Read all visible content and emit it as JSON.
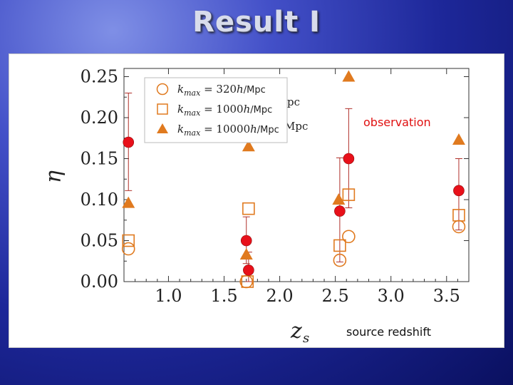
{
  "slide": {
    "title": "Result I"
  },
  "chart_data": {
    "type": "scatter",
    "xlabel": "z_s",
    "ylabel": "η",
    "xlim": [
      0.6,
      3.7
    ],
    "ylim": [
      0,
      0.26
    ],
    "x_ticks": [
      "1.0",
      "1.5",
      "2.0",
      "2.5",
      "3.0",
      "3.5"
    ],
    "y_ticks": [
      "0.00",
      "0.05",
      "0.10",
      "0.15",
      "0.20",
      "0.25"
    ],
    "legend_placement": "top-left",
    "annotations": {
      "observation": "observation",
      "source_redshift": "source redshift",
      "legend_clip_1": "pc",
      "legend_clip_2": "Mpc"
    },
    "colors": {
      "model": "#e07a1f",
      "observation": "#e8101a",
      "errorbar": "#b0302a",
      "annotation": "#e01010"
    },
    "series": [
      {
        "name": "kmax = 320h/Mpc",
        "legend": {
          "var": "k",
          "sub": "max",
          "eq": " = 320",
          "h": "h",
          "unit": "/Mpc"
        },
        "marker": "circle-open",
        "points": [
          {
            "x": 0.64,
            "y": 0.04
          },
          {
            "x": 1.7,
            "y": 0.0
          },
          {
            "x": 2.54,
            "y": 0.026
          },
          {
            "x": 2.62,
            "y": 0.055
          },
          {
            "x": 3.61,
            "y": 0.067
          }
        ]
      },
      {
        "name": "kmax = 1000h/Mpc",
        "legend": {
          "var": "k",
          "sub": "max",
          "eq": " = 1000",
          "h": "h",
          "unit": "/Mpc"
        },
        "marker": "square-open",
        "points": [
          {
            "x": 0.64,
            "y": 0.05
          },
          {
            "x": 1.71,
            "y": 0.0
          },
          {
            "x": 1.72,
            "y": 0.089
          },
          {
            "x": 2.54,
            "y": 0.044
          },
          {
            "x": 2.62,
            "y": 0.106
          },
          {
            "x": 3.61,
            "y": 0.081
          }
        ]
      },
      {
        "name": "kmax = 10000h/Mpc",
        "legend": {
          "var": "k",
          "sub": "max",
          "eq": " = 10000",
          "h": "h",
          "unit": "/Mpc"
        },
        "marker": "triangle-filled",
        "points": [
          {
            "x": 0.64,
            "y": 0.096
          },
          {
            "x": 1.7,
            "y": 0.033
          },
          {
            "x": 1.72,
            "y": 0.165
          },
          {
            "x": 2.53,
            "y": 0.1
          },
          {
            "x": 2.62,
            "y": 0.25
          },
          {
            "x": 3.61,
            "y": 0.173
          }
        ]
      },
      {
        "name": "observation",
        "marker": "circle-filled",
        "points": [
          {
            "x": 0.64,
            "y": 0.17,
            "ylow": 0.111,
            "yhigh": 0.23
          },
          {
            "x": 1.7,
            "y": 0.05,
            "ylow": 0.022,
            "yhigh": 0.079
          },
          {
            "x": 1.72,
            "y": 0.014,
            "ylow": 0.0,
            "yhigh": 0.036
          },
          {
            "x": 2.54,
            "y": 0.086,
            "ylow": 0.024,
            "yhigh": 0.151
          },
          {
            "x": 2.62,
            "y": 0.15,
            "ylow": 0.09,
            "yhigh": 0.211
          },
          {
            "x": 3.61,
            "y": 0.111,
            "ylow": 0.063,
            "yhigh": 0.15
          }
        ]
      }
    ]
  }
}
